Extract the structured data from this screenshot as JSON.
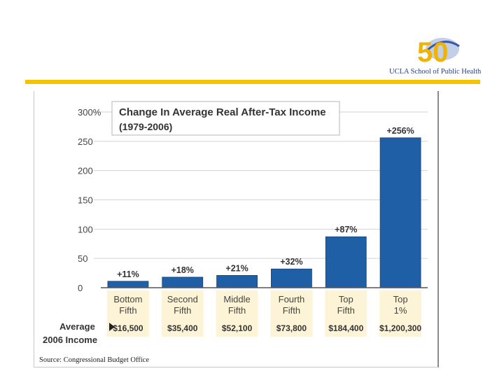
{
  "logo": {
    "badge_text": "50",
    "caption": "UCLA School of Public Health"
  },
  "chart_data": {
    "type": "bar",
    "title": "Change In Average Real After-Tax Income",
    "subtitle": "(1979-2006)",
    "categories": [
      [
        "Bottom",
        "Fifth"
      ],
      [
        "Second",
        "Fifth"
      ],
      [
        "Middle",
        "Fifth"
      ],
      [
        "Fourth",
        "Fifth"
      ],
      [
        "Top",
        "Fifth"
      ],
      [
        "Top",
        "1%"
      ]
    ],
    "values": [
      11,
      18,
      21,
      32,
      87,
      256
    ],
    "value_labels": [
      "+11%",
      "+18%",
      "+21%",
      "+32%",
      "+87%",
      "+256%"
    ],
    "ylim": [
      0,
      300
    ],
    "yticks": [
      0,
      50,
      100,
      150,
      200,
      250,
      300
    ],
    "ytick_labels": [
      "0",
      "50",
      "100",
      "150",
      "200",
      "250",
      "300%"
    ],
    "income_label": [
      "Average",
      "2006 Income"
    ],
    "income_values": [
      "$16,500",
      "$35,400",
      "$52,100",
      "$73,800",
      "$184,400",
      "$1,200,300"
    ],
    "colors": {
      "bar": "#1f5fa6",
      "bar_edge": "#16457a",
      "category_bg": "#fdf3d6",
      "grid": "#d2d2d2"
    },
    "source": "Source: Congressional Budget Office"
  }
}
